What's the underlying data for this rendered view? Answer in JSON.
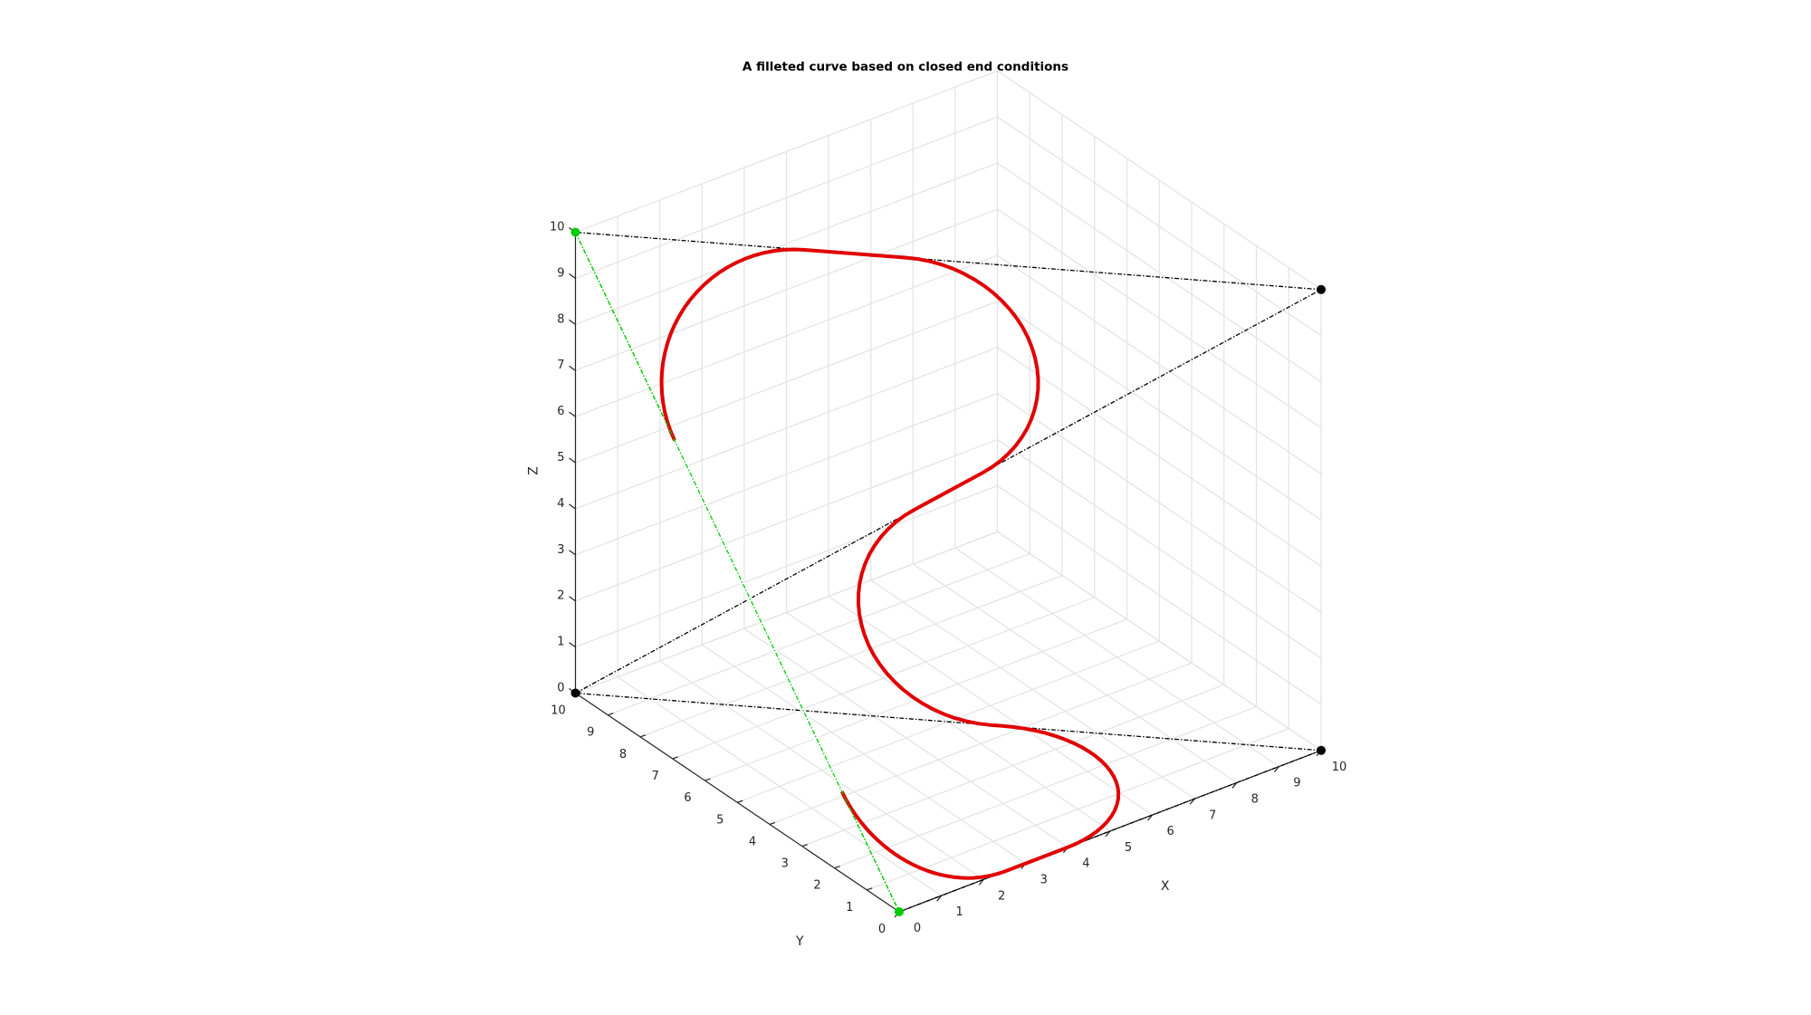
{
  "chart_data": {
    "type": "line3d",
    "title": "A filleted curve based on closed end conditions",
    "xlabel": "X",
    "ylabel": "Y",
    "zlabel": "Z",
    "xlim": [
      0,
      10
    ],
    "ylim": [
      0,
      10
    ],
    "zlim": [
      0,
      10
    ],
    "grid": true,
    "x_ticks": [
      "0",
      "1",
      "2",
      "3",
      "4",
      "5",
      "6",
      "7",
      "8",
      "9",
      "10"
    ],
    "y_ticks": [
      "0",
      "1",
      "2",
      "3",
      "4",
      "5",
      "6",
      "7",
      "8",
      "9",
      "10"
    ],
    "z_ticks": [
      "0",
      "1",
      "2",
      "3",
      "4",
      "5",
      "6",
      "7",
      "8",
      "9",
      "10"
    ],
    "control_points": [
      [
        0,
        0,
        0
      ],
      [
        10,
        0,
        0
      ],
      [
        0,
        10,
        0
      ],
      [
        10,
        0,
        10
      ],
      [
        0,
        10,
        10
      ]
    ],
    "closing_segment": [
      [
        0,
        10,
        10
      ],
      [
        0,
        0,
        0
      ]
    ],
    "fillet_radius": 2.5,
    "colors": {
      "curve": "#e00000",
      "control_polygon": "#000000",
      "closing_segment": "#00cc00",
      "end_points": "#00cc00",
      "control_markers": "#000000"
    }
  }
}
